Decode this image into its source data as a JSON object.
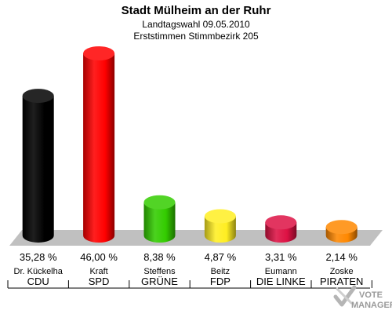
{
  "chart_data": {
    "type": "bar",
    "title": "Stadt Mülheim an der Ruhr",
    "subtitle_lines": [
      "Landtagswahl 09.05.2010",
      "Erststimmen Stimmbezirk 205"
    ],
    "value_labels": [
      "35,28 %",
      "46,00 %",
      "8,38 %",
      "4,87 %",
      "3,31 %",
      "2,14 %"
    ],
    "categories": [
      "CDU",
      "SPD",
      "GRÜNE",
      "FDP",
      "DIE LINKE",
      "PIRATEN"
    ],
    "candidates": [
      "Dr. Kückelha",
      "Kraft",
      "Steffens",
      "Beitz",
      "Eumann",
      "Zoske"
    ],
    "values": [
      35.28,
      46.0,
      8.38,
      4.87,
      3.31,
      2.14
    ],
    "colors": [
      "#000000",
      "#ff0000",
      "#33cc00",
      "#ffee22",
      "#dd1144",
      "#ff8800"
    ],
    "ylim": [
      0,
      46
    ]
  },
  "logo": {
    "line1": "VOTE",
    "line2": "MANAGER"
  }
}
